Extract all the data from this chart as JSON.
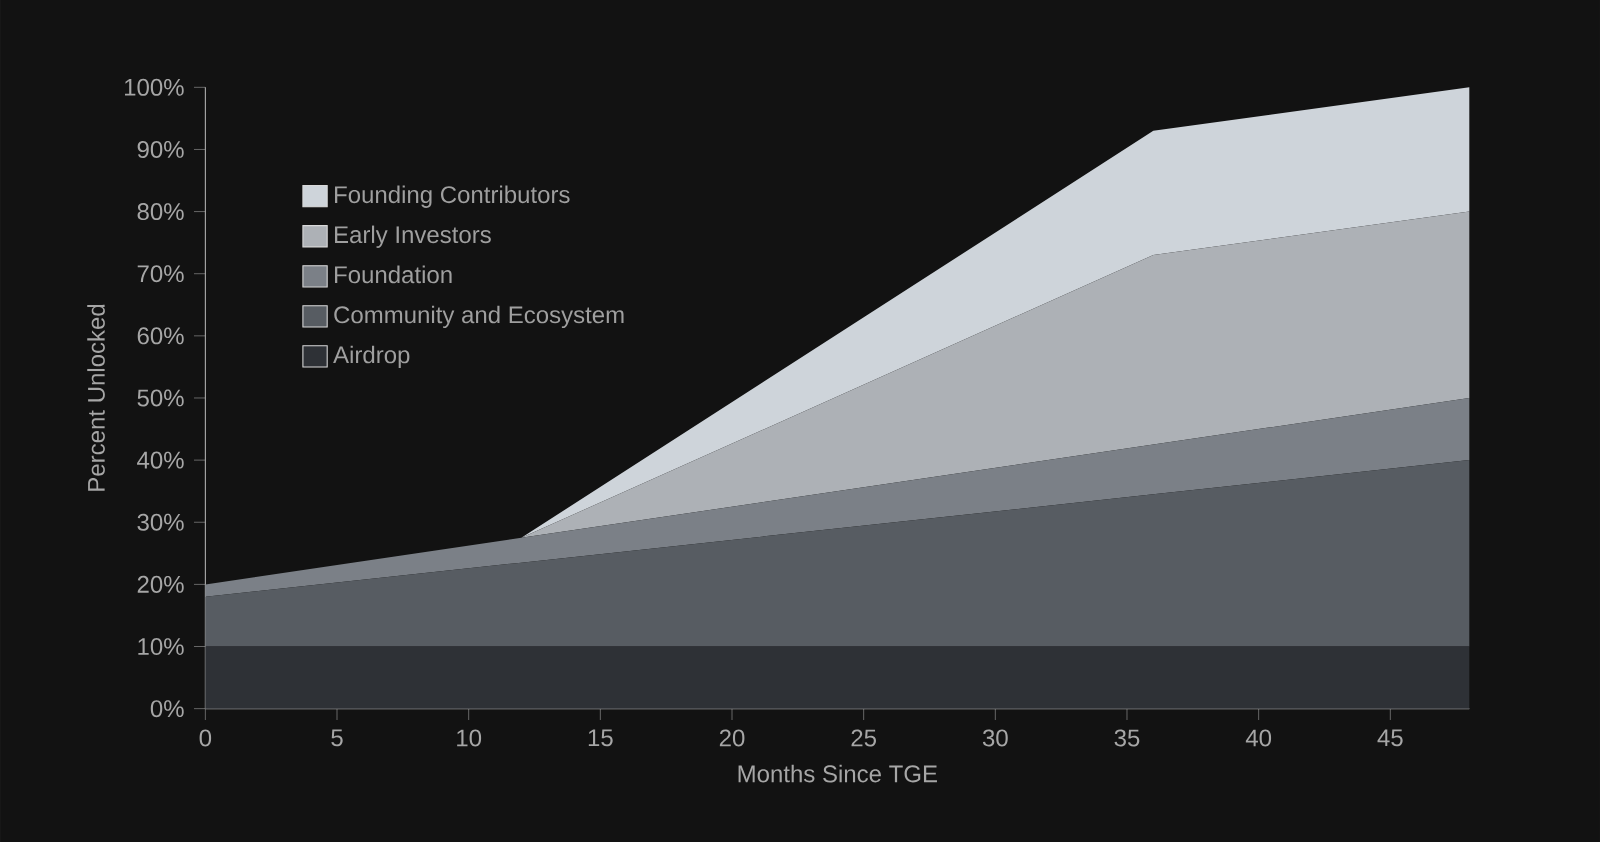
{
  "chart_data": {
    "type": "area",
    "stacked": true,
    "xlabel": "Months Since TGE",
    "ylabel": "Percent Unlocked",
    "x": [
      0,
      12,
      36,
      48
    ],
    "series": [
      {
        "name": "Airdrop",
        "color": "#2e3136",
        "values": [
          10,
          10,
          10,
          10
        ]
      },
      {
        "name": "Community and Ecosystem",
        "color": "#575c62",
        "values": [
          8,
          13.5,
          24.5,
          30
        ]
      },
      {
        "name": "Foundation",
        "color": "#7b8087",
        "values": [
          2,
          4,
          8,
          10
        ]
      },
      {
        "name": "Early Investors",
        "color": "#adb1b6",
        "values": [
          0,
          0,
          30.5,
          30
        ]
      },
      {
        "name": "Founding Contributors",
        "color": "#ced4da",
        "values": [
          0,
          0,
          20,
          20
        ]
      }
    ],
    "xlim": [
      0,
      48
    ],
    "xticks": [
      0,
      5,
      10,
      15,
      20,
      25,
      30,
      35,
      40,
      45
    ],
    "ylim": [
      0,
      100
    ],
    "yticks": [
      {
        "value": 0,
        "label": "0%"
      },
      {
        "value": 10,
        "label": "10%"
      },
      {
        "value": 20,
        "label": "20%"
      },
      {
        "value": 30,
        "label": "30%"
      },
      {
        "value": 40,
        "label": "40%"
      },
      {
        "value": 50,
        "label": "50%"
      },
      {
        "value": 60,
        "label": "60%"
      },
      {
        "value": 70,
        "label": "70%"
      },
      {
        "value": 80,
        "label": "80%"
      },
      {
        "value": 90,
        "label": "90%"
      },
      {
        "value": 100,
        "label": "100%"
      }
    ],
    "legend": "top left"
  }
}
